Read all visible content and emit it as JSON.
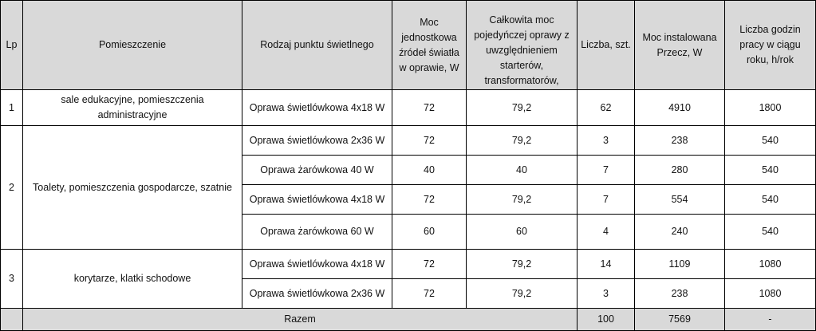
{
  "headers": {
    "lp": "Lp",
    "room": "Pomieszczenie",
    "fixture_type": "Rodzaj punktu świetlnego",
    "unit_power": "Moc jednostkowa źródeł światła w oprawie, W",
    "total_power": "Całkowita moc pojedyńczej oprawy z uwzględnieniem starterów, transformatorów, stateczników, W",
    "count": "Liczba, szt.",
    "installed_power": "Moc instalowana Przecz, W",
    "hours": "Liczba godzin pracy w ciągu roku, h/rok"
  },
  "groups": [
    {
      "lp": "1",
      "room": "sale edukacyjne, pomieszczenia administracyjne",
      "rows": [
        {
          "fixture": "Oprawa świetlówkowa 4x18 W",
          "unit_power": "72",
          "total_power": "79,2",
          "count": "62",
          "installed": "4910",
          "hours": "1800"
        }
      ]
    },
    {
      "lp": "2",
      "room": "Toalety, pomieszczenia gospodarcze, szatnie",
      "rows": [
        {
          "fixture": "Oprawa świetlówkowa 2x36 W",
          "unit_power": "72",
          "total_power": "79,2",
          "count": "3",
          "installed": "238",
          "hours": "540"
        },
        {
          "fixture": "Oprawa żarówkowa 40 W",
          "unit_power": "40",
          "total_power": "40",
          "count": "7",
          "installed": "280",
          "hours": "540"
        },
        {
          "fixture": "Oprawa świetlówkowa 4x18 W",
          "unit_power": "72",
          "total_power": "79,2",
          "count": "7",
          "installed": "554",
          "hours": "540"
        },
        {
          "fixture": "Oprawa żarówkowa 60 W",
          "unit_power": "60",
          "total_power": "60",
          "count": "4",
          "installed": "240",
          "hours": "540"
        }
      ]
    },
    {
      "lp": "3",
      "room": "korytarze, klatki schodowe",
      "rows": [
        {
          "fixture": "Oprawa świetlówkowa 4x18 W",
          "unit_power": "72",
          "total_power": "79,2",
          "count": "14",
          "installed": "1109",
          "hours": "1080"
        },
        {
          "fixture": "Oprawa świetlówkowa 2x36 W",
          "unit_power": "72",
          "total_power": "79,2",
          "count": "3",
          "installed": "238",
          "hours": "1080"
        }
      ]
    }
  ],
  "total": {
    "label": "Razem",
    "count": "100",
    "installed": "7569",
    "hours": "-"
  }
}
